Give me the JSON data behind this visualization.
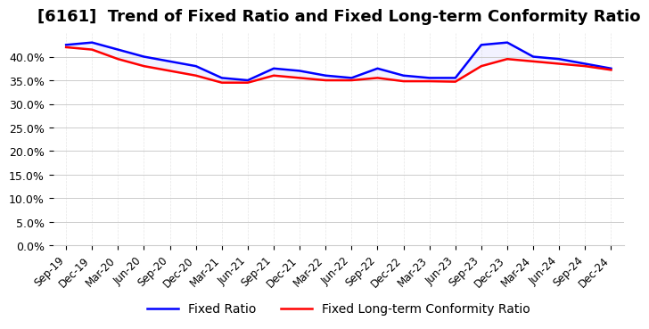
{
  "title": "[6161]  Trend of Fixed Ratio and Fixed Long-term Conformity Ratio",
  "x_labels": [
    "Sep-19",
    "Dec-19",
    "Mar-20",
    "Jun-20",
    "Sep-20",
    "Dec-20",
    "Mar-21",
    "Jun-21",
    "Sep-21",
    "Dec-21",
    "Mar-22",
    "Jun-22",
    "Sep-22",
    "Dec-22",
    "Mar-23",
    "Jun-23",
    "Sep-23",
    "Dec-23",
    "Mar-24",
    "Jun-24",
    "Sep-24",
    "Dec-24"
  ],
  "fixed_ratio": [
    0.425,
    0.43,
    0.415,
    0.4,
    0.39,
    0.38,
    0.355,
    0.35,
    0.375,
    0.37,
    0.36,
    0.355,
    0.375,
    0.36,
    0.355,
    0.355,
    0.425,
    0.43,
    0.4,
    0.395,
    0.385,
    0.375
  ],
  "fixed_lt_ratio": [
    0.42,
    0.415,
    0.395,
    0.38,
    0.37,
    0.36,
    0.345,
    0.345,
    0.36,
    0.355,
    0.35,
    0.35,
    0.355,
    0.348,
    0.348,
    0.347,
    0.38,
    0.395,
    0.39,
    0.385,
    0.38,
    0.372
  ],
  "ylim": [
    0.0,
    0.45
  ],
  "yticks": [
    0.0,
    0.05,
    0.1,
    0.15,
    0.2,
    0.25,
    0.3,
    0.35,
    0.4
  ],
  "fixed_ratio_color": "#0000ff",
  "fixed_lt_ratio_color": "#ff0000",
  "background_color": "#ffffff",
  "grid_color": "#cccccc",
  "title_fontsize": 13,
  "legend_labels": [
    "Fixed Ratio",
    "Fixed Long-term Conformity Ratio"
  ]
}
